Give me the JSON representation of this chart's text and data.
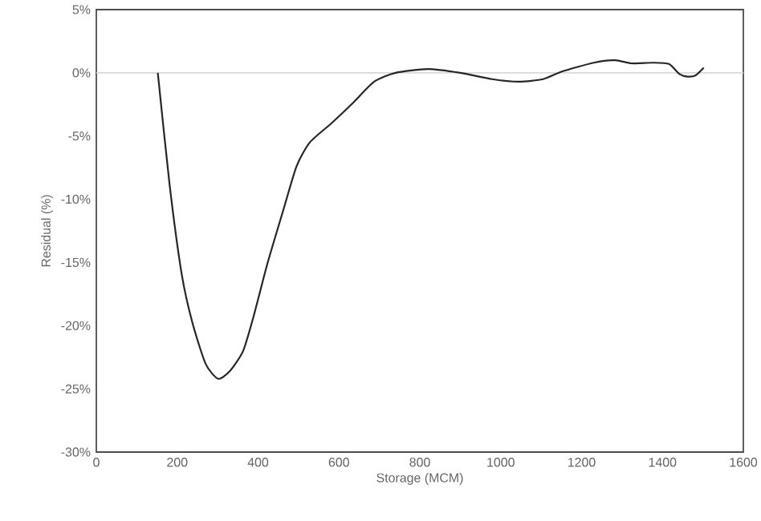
{
  "chart_data": {
    "type": "line",
    "xlabel": "Storage (MCM)",
    "ylabel": "Residual (%)",
    "xlim": [
      0,
      1600
    ],
    "xticks": [
      0,
      200,
      400,
      600,
      800,
      1000,
      1200,
      1400,
      1600
    ],
    "ylim": [
      -30,
      5
    ],
    "yticks": [
      {
        "value": 5,
        "label": "5%"
      },
      {
        "value": 0,
        "label": "0%"
      },
      {
        "value": -5,
        "label": "-5%"
      },
      {
        "value": -10,
        "label": "-10%"
      },
      {
        "value": -15,
        "label": "-15%"
      },
      {
        "value": -20,
        "label": "-20%"
      },
      {
        "value": -25,
        "label": "-25%"
      },
      {
        "value": -30,
        "label": "-30%"
      }
    ],
    "ref_lines": [
      {
        "axis": "y",
        "value": 0,
        "color": "#d9d9d9"
      }
    ],
    "series": [
      {
        "color": "#262626",
        "x": [
          152,
          181,
          211,
          237,
          270,
          301,
          330,
          363,
          389,
          423,
          462,
          495,
          528,
          581,
          634,
          687,
          740,
          820,
          900,
          979,
          1045,
          1105,
          1151,
          1230,
          1283,
          1323,
          1376,
          1416,
          1442,
          1462,
          1482,
          1502
        ],
        "values": [
          0,
          -8.8,
          -15.9,
          -19.7,
          -23,
          -24.2,
          -23.6,
          -22,
          -19.25,
          -15.1,
          -10.9,
          -7.4,
          -5.5,
          -4.0,
          -2.4,
          -0.7,
          0,
          0.3,
          0,
          -0.5,
          -0.7,
          -0.5,
          0.1,
          0.8,
          1.0,
          0.75,
          0.8,
          0.7,
          -0.1,
          -0.3,
          -0.2,
          0.4
        ]
      }
    ]
  }
}
